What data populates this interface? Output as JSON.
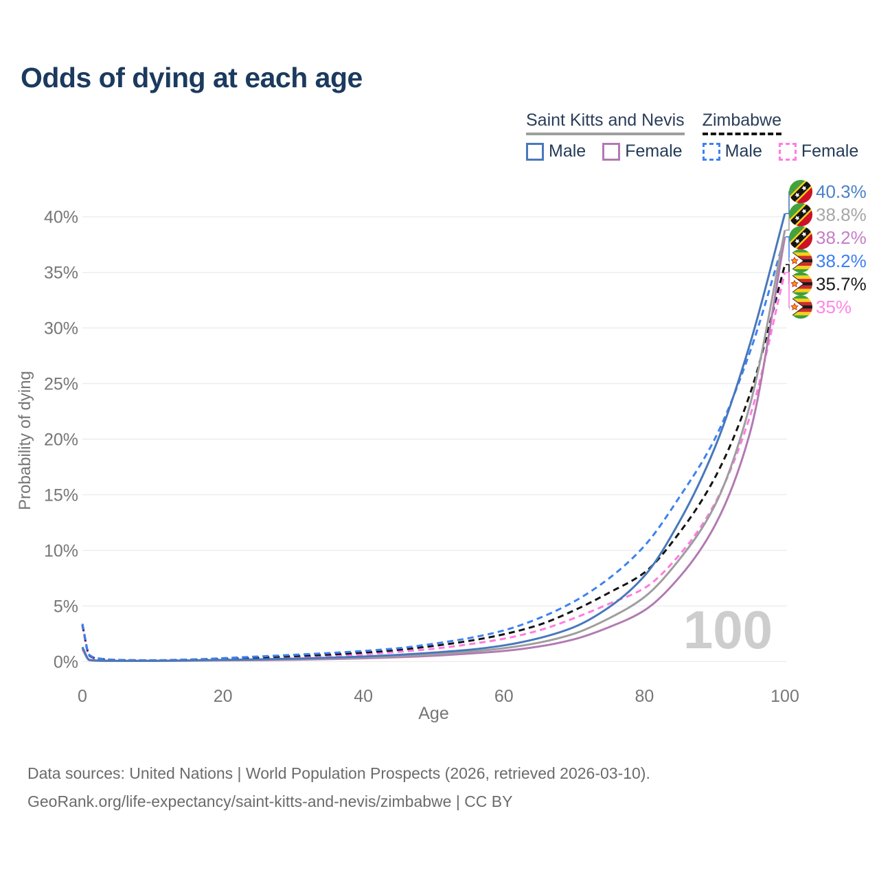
{
  "title": "Odds of dying at each age",
  "legend": {
    "groups": [
      {
        "name": "Saint Kitts and Nevis",
        "underline_style": "solid",
        "underline_color": "#9e9e9e",
        "items": [
          {
            "label": "Male",
            "color": "#4878bc",
            "dashed": false
          },
          {
            "label": "Female",
            "color": "#b27ab2",
            "dashed": false
          }
        ]
      },
      {
        "name": "Zimbabwe",
        "underline_style": "dashed",
        "underline_color": "#141414",
        "items": [
          {
            "label": "Male",
            "color": "#3d82f0",
            "dashed": true
          },
          {
            "label": "Female",
            "color": "#ff7ce0",
            "dashed": true
          }
        ]
      }
    ]
  },
  "chart_data": {
    "type": "line",
    "title": "Odds of dying at each age",
    "xlabel": "Age",
    "ylabel": "Probability of dying",
    "xlim": [
      0,
      100
    ],
    "ylim": [
      0,
      40
    ],
    "xticks": [
      0,
      20,
      40,
      60,
      80,
      100
    ],
    "yticks": [
      0,
      5,
      10,
      15,
      20,
      25,
      30,
      35,
      40
    ],
    "ytick_suffix": "%",
    "grid": true,
    "legend_position": "top-right",
    "watermark": "100",
    "x": [
      0,
      1,
      2,
      5,
      10,
      15,
      20,
      25,
      30,
      35,
      40,
      45,
      50,
      55,
      60,
      65,
      70,
      75,
      80,
      85,
      90,
      95,
      100
    ],
    "series": [
      {
        "name": "Saint Kitts and Nevis Male",
        "country": "saint-kitts-and-nevis",
        "sex": "male",
        "flag": "flag-skn",
        "color": "#4878bc",
        "label_color": "#4b80c9",
        "dashed": false,
        "end_label": "40.3%",
        "label_slot": 0,
        "values": [
          1.3,
          0.15,
          0.09,
          0.06,
          0.07,
          0.1,
          0.15,
          0.2,
          0.26,
          0.34,
          0.45,
          0.6,
          0.8,
          1.05,
          1.45,
          2.1,
          3.1,
          4.9,
          7.7,
          12.6,
          19.2,
          28.5,
          40.3
        ]
      },
      {
        "name": "Saint Kitts and Nevis Both sexes",
        "country": "saint-kitts-and-nevis",
        "sex": "all",
        "flag": "flag-skn",
        "color": "#9e9e9e",
        "label_color": "#a6a6a6",
        "dashed": false,
        "end_label": "38.8%",
        "label_slot": 1,
        "values": [
          1.2,
          0.13,
          0.08,
          0.05,
          0.06,
          0.08,
          0.12,
          0.16,
          0.21,
          0.28,
          0.37,
          0.49,
          0.66,
          0.88,
          1.2,
          1.7,
          2.5,
          3.9,
          5.8,
          9.2,
          14.0,
          23.0,
          38.8
        ]
      },
      {
        "name": "Saint Kitts and Nevis Female",
        "country": "saint-kitts-and-nevis",
        "sex": "female",
        "flag": "flag-skn",
        "color": "#b27ab2",
        "label_color": "#c67ec6",
        "dashed": false,
        "end_label": "38.2%",
        "label_slot": 2,
        "values": [
          1.1,
          0.12,
          0.07,
          0.05,
          0.05,
          0.07,
          0.09,
          0.12,
          0.16,
          0.22,
          0.29,
          0.39,
          0.52,
          0.71,
          0.95,
          1.35,
          2.0,
          3.1,
          4.6,
          7.6,
          12.2,
          20.5,
          38.2
        ]
      },
      {
        "name": "Zimbabwe Male",
        "country": "zimbabwe",
        "sex": "male",
        "flag": "flag-zw",
        "color": "#3d82f0",
        "label_color": "#3d7ef5",
        "dashed": true,
        "end_label": "38.2%",
        "label_slot": 3,
        "values": [
          3.4,
          0.6,
          0.3,
          0.15,
          0.12,
          0.18,
          0.3,
          0.45,
          0.6,
          0.76,
          0.95,
          1.2,
          1.6,
          2.1,
          2.8,
          3.9,
          5.4,
          7.5,
          10.4,
          14.8,
          20.0,
          27.8,
          38.2
        ]
      },
      {
        "name": "Zimbabwe Both sexes",
        "country": "zimbabwe",
        "sex": "all",
        "flag": "flag-zw",
        "color": "#141414",
        "label_color": "#1a1a1a",
        "dashed": true,
        "end_label": "35.7%",
        "label_slot": 4,
        "values": [
          3.3,
          0.55,
          0.28,
          0.13,
          0.1,
          0.15,
          0.24,
          0.36,
          0.48,
          0.62,
          0.8,
          1.05,
          1.4,
          1.85,
          2.45,
          3.3,
          4.6,
          6.2,
          8.0,
          11.6,
          16.5,
          24.0,
          35.7
        ]
      },
      {
        "name": "Zimbabwe Female",
        "country": "zimbabwe",
        "sex": "female",
        "flag": "flag-zw",
        "color": "#ff7ce0",
        "label_color": "#ff85e6",
        "dashed": true,
        "end_label": "35%",
        "label_slot": 5,
        "values": [
          3.2,
          0.5,
          0.25,
          0.12,
          0.09,
          0.12,
          0.18,
          0.27,
          0.37,
          0.5,
          0.65,
          0.87,
          1.15,
          1.55,
          2.05,
          2.8,
          3.9,
          5.2,
          6.6,
          9.6,
          14.2,
          22.0,
          35.0
        ]
      }
    ]
  },
  "footer": {
    "line1": "Data sources: United Nations | World Population Prospects (2026, retrieved 2026-03-10).",
    "line2": "GeoRank.org/life-expectancy/saint-kitts-and-nevis/zimbabwe | CC BY"
  },
  "colors": {
    "title": "#1b3a5e",
    "axis_text": "#767676",
    "gridline": "#ececec",
    "watermark": "#cdcdcd",
    "footer_text": "#6b6b6b"
  }
}
